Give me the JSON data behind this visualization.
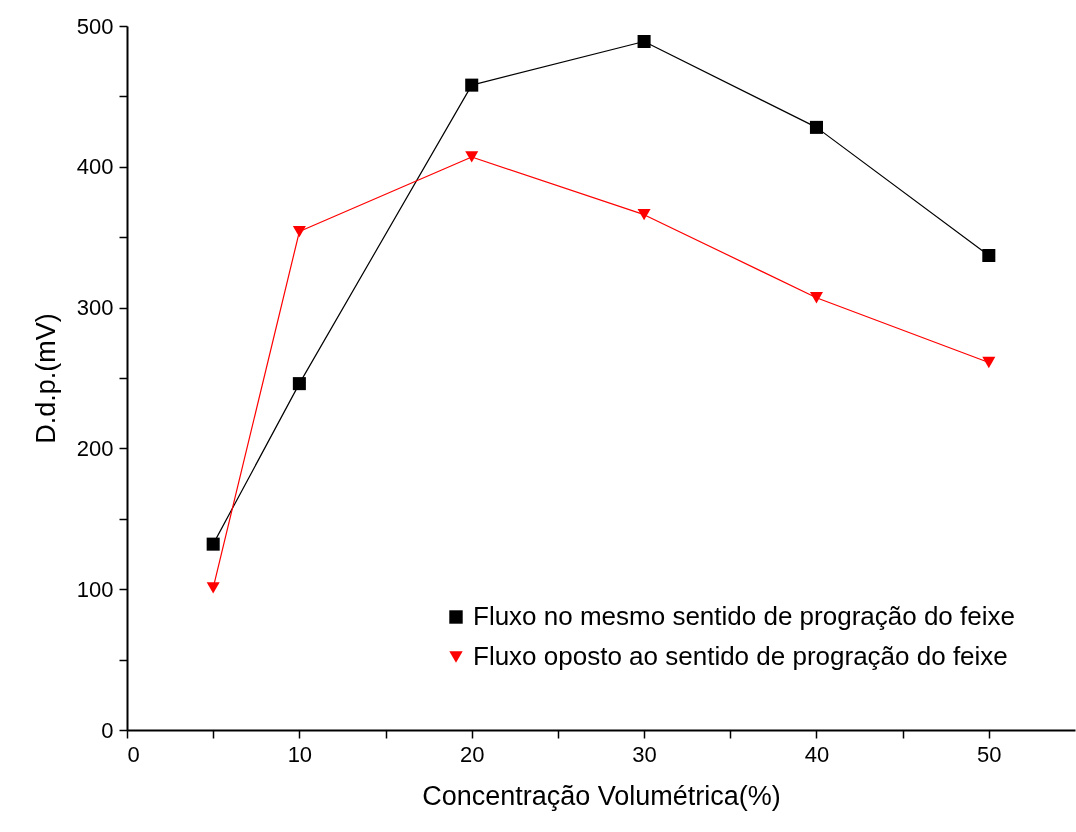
{
  "chart_data": {
    "type": "line",
    "xlabel": "Concentração Volumétrica(%)",
    "ylabel": "D.d.p.(mV)",
    "x": [
      5,
      10,
      20,
      30,
      40,
      50
    ],
    "series": [
      {
        "name": "Fluxo no mesmo sentido de progração do feixe",
        "color": "#000000",
        "marker": "square",
        "values": [
          132,
          246,
          458,
          489,
          428,
          337
        ]
      },
      {
        "name": "Fluxo oposto ao sentido de progração do feixe",
        "color": "#ff0000",
        "marker": "triangle-down",
        "values": [
          101,
          354,
          407,
          366,
          307,
          261
        ]
      }
    ],
    "xlim": [
      0,
      55
    ],
    "xticks": [
      0,
      {
        "value": 5,
        "label": null
      },
      10,
      {
        "value": 15,
        "label": null
      },
      20,
      {
        "value": 25,
        "label": null
      },
      30,
      {
        "value": 35,
        "label": null
      },
      40,
      {
        "value": 45,
        "label": null
      },
      50
    ],
    "ylim": [
      0,
      500
    ],
    "yticks": [
      0,
      {
        "value": 50,
        "label": null
      },
      100,
      {
        "value": 150,
        "label": null
      },
      200,
      {
        "value": 250,
        "label": null
      },
      300,
      {
        "value": 350,
        "label": null
      },
      400,
      {
        "value": 450,
        "label": null
      },
      500
    ],
    "grid": false,
    "legend": "bottom right",
    "line_style": "solid"
  }
}
